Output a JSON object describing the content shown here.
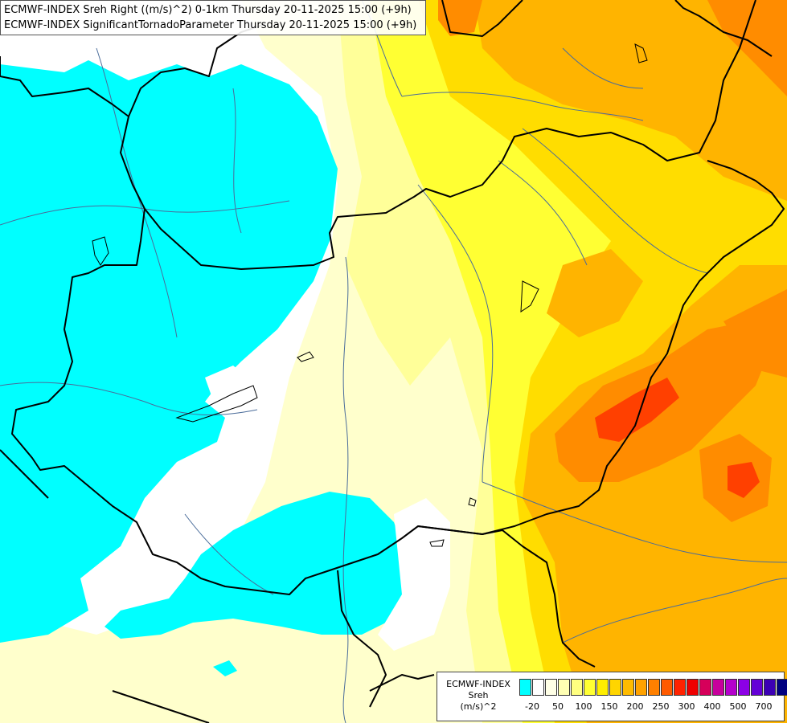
{
  "title": {
    "line1": "ECMWF-INDEX Sreh Right ((m/s)^2) 0-1km Thursday 20-11-2025 15:00 (+9h)",
    "line2": "ECMWF-INDEX SignificantTornadoParameter Thursday 20-11-2025 15:00 (+9h)"
  },
  "legend": {
    "title_lines": [
      "ECMWF-INDEX",
      "Sreh",
      "(m/s)^2"
    ],
    "colors": [
      "#00ffff",
      "#ffffff",
      "#ffffe6",
      "#ffffb3",
      "#ffff80",
      "#ffff33",
      "#ffee00",
      "#ffd500",
      "#ffbb00",
      "#ffa200",
      "#ff8000",
      "#ff5a00",
      "#ff2200",
      "#ee0000",
      "#d6005a",
      "#c7009c",
      "#b400cc",
      "#8c00e6",
      "#6400d6",
      "#3c00b4",
      "#000080"
    ],
    "ticks": [
      "-20",
      "50",
      "100",
      "150",
      "200",
      "250",
      "300",
      "400",
      "500",
      "700"
    ]
  },
  "map_colors": {
    "cyan": "#00ffff",
    "pale": "#ffffcc",
    "light_yellow": "#ffff99",
    "yellow": "#ffff33",
    "gold": "#ffdd00",
    "orange": "#ffb400",
    "dark_orange": "#ff8c00",
    "red": "#ff4000",
    "border": "#000000",
    "river": "#4a6c9a"
  }
}
